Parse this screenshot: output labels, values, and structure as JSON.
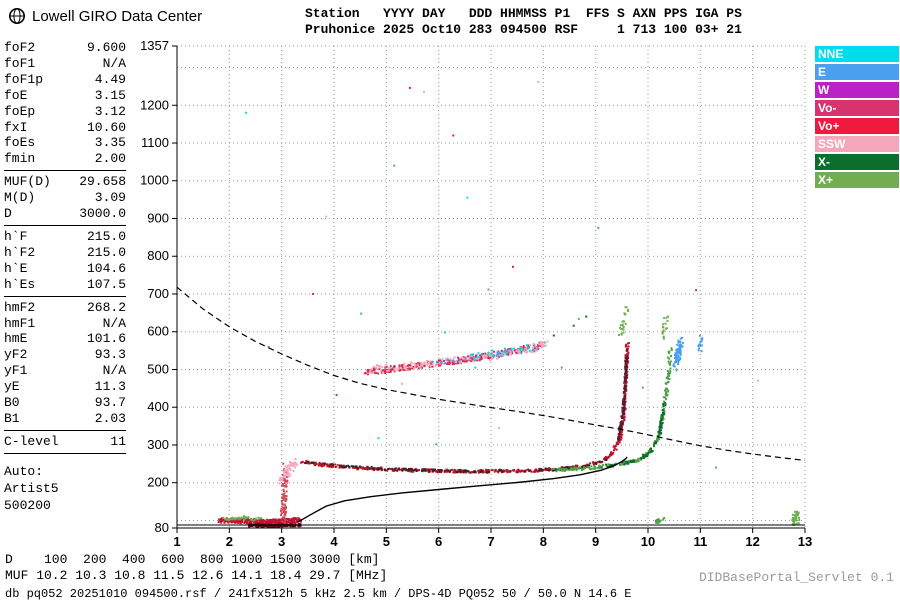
{
  "header": {
    "brand": "Lowell GIRO Data Center",
    "line1": "Station   YYYY DAY   DDD HHMMSS P1  FFS S AXN PPS IGA PS",
    "line2": "Pruhonice 2025 Oct10 283 094500 RSF     1 713 100 03+ 21"
  },
  "params": {
    "groups": [
      [
        {
          "label": "foF2",
          "value": "9.600"
        },
        {
          "label": "foF1",
          "value": "N/A"
        },
        {
          "label": "foF1p",
          "value": "4.49"
        },
        {
          "label": "foE",
          "value": "3.15"
        },
        {
          "label": "foEp",
          "value": "3.12"
        },
        {
          "label": "fxI",
          "value": "10.60"
        },
        {
          "label": "foEs",
          "value": "3.35"
        },
        {
          "label": "fmin",
          "value": "2.00"
        }
      ],
      [
        {
          "label": "MUF(D)",
          "value": "29.658"
        },
        {
          "label": "M(D)",
          "value": "3.09"
        },
        {
          "label": "D",
          "value": "3000.0"
        }
      ],
      [
        {
          "label": "h`F",
          "value": "215.0"
        },
        {
          "label": "h`F2",
          "value": "215.0"
        },
        {
          "label": "h`E",
          "value": "104.6"
        },
        {
          "label": "h`Es",
          "value": "107.5"
        }
      ],
      [
        {
          "label": "hmF2",
          "value": "268.2"
        },
        {
          "label": "hmF1",
          "value": "N/A"
        },
        {
          "label": "hmE",
          "value": "101.6"
        },
        {
          "label": "yF2",
          "value": "93.3"
        },
        {
          "label": "yF1",
          "value": "N/A"
        },
        {
          "label": "yE",
          "value": "11.3"
        },
        {
          "label": "B0",
          "value": "93.7"
        },
        {
          "label": "B1",
          "value": "2.03"
        }
      ],
      [
        {
          "label": "C-level",
          "value": "11"
        }
      ]
    ],
    "auto": [
      "Auto:",
      "Artist5",
      "500200"
    ]
  },
  "colors": {
    "NNE": "#00dcec",
    "E": "#4aa0ee",
    "W": "#bb22c4",
    "Vo-": "#d6336f",
    "Vo+": "#ef1a3c",
    "SSW": "#f4a7bb",
    "X-": "#0a6e2f",
    "X+": "#72ae4f"
  },
  "legend": {
    "items": [
      {
        "label": "NNE",
        "key": "NNE"
      },
      {
        "label": "E",
        "key": "E"
      },
      {
        "label": "W",
        "key": "W"
      },
      {
        "label": "Vo-",
        "key": "Vo-"
      },
      {
        "label": "Vo+",
        "key": "Vo+"
      },
      {
        "label": "SSW",
        "key": "SSW"
      },
      {
        "label": "X-",
        "key": "X-"
      },
      {
        "label": "X+",
        "key": "X+"
      }
    ]
  },
  "footer": {
    "d_line": "D    100  200  400  600  800 1000 1500 3000 [km]",
    "muf_line": "MUF 10.2 10.3 10.8 11.5 12.6 14.1 18.4 29.7 [MHz]",
    "status": "db pq052 20251010 094500.rsf / 241fx512h 5 kHz 2.5 km / DPS-4D PQ052 50 / 50.0 N 14.6 E",
    "servlet": "DIDBasePortal_Servlet 0.1"
  },
  "chart_data": {
    "type": "scatter",
    "title": "Pruhonice ionogram 2025 Oct10 094500",
    "xlabel": "[MHz]",
    "ylabel": "[km]",
    "xlim": [
      1,
      13
    ],
    "ylim": [
      80,
      1357
    ],
    "xticks": [
      1,
      2,
      3,
      4,
      5,
      6,
      7,
      8,
      9,
      10,
      11,
      12,
      13
    ],
    "yticks": [
      1357,
      1200,
      1100,
      1000,
      900,
      800,
      700,
      600,
      500,
      400,
      300,
      200,
      80
    ],
    "grid_x": [
      2,
      3,
      4,
      5,
      6,
      7,
      8,
      9,
      10,
      11,
      12,
      13
    ],
    "grid_y": [
      100,
      200,
      300,
      400,
      500,
      600,
      700,
      800,
      900,
      1000,
      1100,
      1200,
      1300,
      1357
    ],
    "muf_table": {
      "D_km": [
        100,
        200,
        400,
        600,
        800,
        1000,
        1500,
        3000
      ],
      "MUF_MHz": [
        10.2,
        10.3,
        10.8,
        11.5,
        12.6,
        14.1,
        18.4,
        29.7
      ]
    },
    "key_frequencies": {
      "foF2": 9.6,
      "fxI": 10.6,
      "foEs": 3.35,
      "fmin": 2.0,
      "hmF2": 268.2
    },
    "curves": {
      "baseline": [
        [
          1,
          88
        ],
        [
          13,
          88
        ]
      ],
      "profile": [
        [
          3.3,
          95
        ],
        [
          3.55,
          115
        ],
        [
          3.85,
          138
        ],
        [
          4.2,
          152
        ],
        [
          4.7,
          163
        ],
        [
          5.3,
          173
        ],
        [
          6,
          182
        ],
        [
          6.8,
          192
        ],
        [
          7.6,
          202
        ],
        [
          8.2,
          211
        ],
        [
          8.7,
          221
        ],
        [
          9.1,
          233
        ],
        [
          9.35,
          245
        ],
        [
          9.5,
          256
        ],
        [
          9.58,
          264
        ],
        [
          9.6,
          268
        ]
      ],
      "transmission": [
        [
          1,
          718
        ],
        [
          1.5,
          660
        ],
        [
          2,
          613
        ],
        [
          2.5,
          574
        ],
        [
          3,
          541
        ],
        [
          3.5,
          511
        ],
        [
          4,
          484
        ],
        [
          4.5,
          463
        ],
        [
          5,
          447
        ],
        [
          5.5,
          434
        ],
        [
          6,
          421
        ],
        [
          6.5,
          410
        ],
        [
          7,
          399
        ],
        [
          7.5,
          389
        ],
        [
          8,
          378
        ],
        [
          8.5,
          366
        ],
        [
          9,
          353
        ],
        [
          9.5,
          341
        ],
        [
          10,
          327
        ],
        [
          10.5,
          312
        ],
        [
          11,
          298
        ],
        [
          11.5,
          286
        ],
        [
          12,
          276
        ],
        [
          12.5,
          267
        ],
        [
          13,
          259
        ]
      ]
    },
    "scatter_series": [
      {
        "name": "es-band-red",
        "color": "#c41230",
        "n": 300,
        "size": 2,
        "jf": 0.04,
        "jh": 6,
        "path": [
          [
            1.82,
            100
          ],
          [
            2.2,
            99
          ],
          [
            2.7,
            96
          ],
          [
            3.1,
            98
          ],
          [
            3.35,
            102
          ]
        ]
      },
      {
        "name": "es-band-dark",
        "color": "#571016",
        "n": 220,
        "size": 2,
        "jf": 0.03,
        "jh": 3,
        "path": [
          [
            2.4,
            87
          ],
          [
            2.9,
            86
          ],
          [
            3.35,
            88
          ]
        ]
      },
      {
        "name": "es-band-green",
        "color": "#6fae52",
        "n": 36,
        "size": 2,
        "jf": 0.05,
        "jh": 5,
        "path": [
          [
            1.85,
            104
          ],
          [
            2.25,
            107
          ],
          [
            2.6,
            103
          ]
        ]
      },
      {
        "name": "spreadf-column",
        "color": "#cf4a55",
        "n": 80,
        "size": 2,
        "jf": 0.05,
        "jh": 12,
        "path": [
          [
            3.03,
            100
          ],
          [
            3.05,
            170
          ],
          [
            3.08,
            245
          ]
        ]
      },
      {
        "name": "spreadf-pink",
        "color": "#f4a7bb",
        "n": 55,
        "size": 2,
        "jf": 0.09,
        "jh": 9,
        "path": [
          [
            3.0,
            205
          ],
          [
            3.15,
            240
          ],
          [
            3.3,
            258
          ]
        ]
      },
      {
        "name": "ftrace-flat-red",
        "color": "#b51325",
        "n": 420,
        "size": 2,
        "jf": 0.02,
        "jh": 4,
        "path": [
          [
            3.35,
            257
          ],
          [
            3.8,
            247
          ],
          [
            4.5,
            239
          ],
          [
            5.5,
            233
          ],
          [
            6.5,
            230
          ],
          [
            7.5,
            231
          ],
          [
            8.2,
            235
          ],
          [
            8.8,
            244
          ],
          [
            9.15,
            259
          ],
          [
            9.35,
            281
          ]
        ]
      },
      {
        "name": "ftrace-flat-dark",
        "color": "#332428",
        "n": 140,
        "size": 2,
        "jf": 0.03,
        "jh": 3,
        "path": [
          [
            3.4,
            255
          ],
          [
            4.2,
            243
          ],
          [
            5.2,
            235
          ],
          [
            6.3,
            230
          ],
          [
            7.4,
            231
          ],
          [
            8.3,
            236
          ],
          [
            8.9,
            246
          ],
          [
            9.2,
            262
          ]
        ]
      },
      {
        "name": "ftrace-rise-red",
        "color": "#cc1133",
        "n": 200,
        "size": 2,
        "jf": 0.03,
        "jh": 10,
        "path": [
          [
            9.36,
            285
          ],
          [
            9.47,
            325
          ],
          [
            9.54,
            390
          ],
          [
            9.57,
            460
          ],
          [
            9.6,
            545
          ],
          [
            9.61,
            565
          ]
        ]
      },
      {
        "name": "ftrace-rise-dark",
        "color": "#432430",
        "n": 90,
        "size": 2,
        "jf": 0.02,
        "jh": 8,
        "path": [
          [
            9.42,
            310
          ],
          [
            9.52,
            380
          ],
          [
            9.57,
            470
          ],
          [
            9.6,
            555
          ]
        ]
      },
      {
        "name": "xtrace-green",
        "color": "#4f9f45",
        "n": 240,
        "size": 2,
        "jf": 0.035,
        "jh": 4,
        "path": [
          [
            8.15,
            233
          ],
          [
            8.8,
            238
          ],
          [
            9.4,
            247
          ],
          [
            9.85,
            262
          ],
          [
            10.05,
            283
          ],
          [
            10.2,
            320
          ],
          [
            10.3,
            385
          ],
          [
            10.37,
            460
          ],
          [
            10.42,
            540
          ],
          [
            10.44,
            560
          ]
        ]
      },
      {
        "name": "xtrace-darkgreen",
        "color": "#0d6b2f",
        "n": 80,
        "size": 2,
        "jf": 0.03,
        "jh": 4,
        "path": [
          [
            9.1,
            243
          ],
          [
            9.7,
            255
          ],
          [
            10.05,
            280
          ],
          [
            10.22,
            330
          ],
          [
            10.32,
            410
          ]
        ]
      },
      {
        "name": "xtop-blue",
        "color": "#4aa0ee",
        "n": 70,
        "size": 2,
        "jf": 0.05,
        "jh": 14,
        "path": [
          [
            10.52,
            505
          ],
          [
            10.57,
            540
          ],
          [
            10.63,
            572
          ]
        ]
      },
      {
        "name": "secondhop-red",
        "color": "#d42a55",
        "n": 300,
        "size": 2,
        "jf": 0.05,
        "jh": 8,
        "path": [
          [
            4.6,
            493
          ],
          [
            5.2,
            503
          ],
          [
            5.8,
            513
          ],
          [
            6.4,
            524
          ],
          [
            7.0,
            538
          ],
          [
            7.5,
            551
          ],
          [
            8.0,
            564
          ]
        ]
      },
      {
        "name": "secondhop-pink",
        "color": "#f4a7bb",
        "n": 170,
        "size": 2,
        "jf": 0.07,
        "jh": 10,
        "path": [
          [
            4.7,
            499
          ],
          [
            5.4,
            510
          ],
          [
            6.1,
            521
          ],
          [
            6.9,
            533
          ],
          [
            7.6,
            549
          ],
          [
            8.05,
            566
          ]
        ]
      },
      {
        "name": "secondhop-cyan",
        "color": "#00dcec",
        "n": 30,
        "size": 2,
        "jf": 0.06,
        "jh": 10,
        "path": [
          [
            6.6,
            532
          ],
          [
            7.3,
            547
          ],
          [
            8.0,
            566
          ]
        ]
      },
      {
        "name": "secondhop-blue",
        "color": "#4aa0ee",
        "n": 26,
        "size": 2,
        "jf": 0.06,
        "jh": 10,
        "path": [
          [
            5.9,
            515
          ],
          [
            7.0,
            538
          ],
          [
            7.9,
            560
          ]
        ]
      },
      {
        "name": "bottomright-green",
        "color": "#6fae52",
        "n": 40,
        "size": 2,
        "jf": 0.05,
        "jh": 14,
        "path": [
          [
            12.78,
            95
          ],
          [
            12.85,
            110
          ]
        ]
      },
      {
        "name": "es-x-green",
        "color": "#4f9f45",
        "n": 14,
        "size": 2,
        "jf": 0.06,
        "jh": 6,
        "path": [
          [
            10.15,
            99
          ],
          [
            10.3,
            101
          ]
        ]
      },
      {
        "name": "otop-specks-green",
        "color": "#6fae52",
        "n": 24,
        "size": 2,
        "jf": 0.04,
        "jh": 18,
        "path": [
          [
            9.47,
            595
          ],
          [
            9.55,
            628
          ],
          [
            9.6,
            652
          ]
        ]
      },
      {
        "name": "xtop-specks-green",
        "color": "#6fae52",
        "n": 18,
        "size": 2,
        "jf": 0.04,
        "jh": 15,
        "path": [
          [
            10.3,
            595
          ],
          [
            10.35,
            638
          ]
        ]
      },
      {
        "name": "right-blue-specks",
        "color": "#4aa0ee",
        "n": 16,
        "size": 2,
        "jf": 0.04,
        "jh": 12,
        "path": [
          [
            10.98,
            555
          ],
          [
            11.04,
            580
          ]
        ]
      }
    ],
    "noise_points": [
      [
        5.45,
        1246,
        "Vo+"
      ],
      [
        5.72,
        1236,
        "SSW"
      ],
      [
        6.28,
        1120,
        "Vo+"
      ],
      [
        5.15,
        1040,
        "E"
      ],
      [
        2.32,
        1180,
        "NNE"
      ],
      [
        6.55,
        955,
        "NNE"
      ],
      [
        3.85,
        905,
        "SSW"
      ],
      [
        9.05,
        875,
        "E"
      ],
      [
        7.42,
        772,
        "Vo+"
      ],
      [
        6.95,
        712,
        "X+"
      ],
      [
        10.92,
        710,
        "W"
      ],
      [
        8.82,
        640,
        "X-"
      ],
      [
        8.58,
        616,
        "X-"
      ],
      [
        8.68,
        634,
        "X+"
      ],
      [
        4.52,
        648,
        "E"
      ],
      [
        6.12,
        598,
        "NNE"
      ],
      [
        5.3,
        462,
        "SSW"
      ],
      [
        6.7,
        505,
        "NNE"
      ],
      [
        8.35,
        505,
        "E"
      ],
      [
        5.95,
        302,
        "E"
      ],
      [
        4.85,
        318,
        "NNE"
      ],
      [
        7.15,
        345,
        "SSW"
      ],
      [
        9.9,
        452,
        "X+"
      ],
      [
        11.3,
        240,
        "E"
      ],
      [
        12.1,
        470,
        "SSW"
      ],
      [
        3.6,
        700,
        "Vo+"
      ],
      [
        2.75,
        560,
        "E"
      ],
      [
        4.05,
        432,
        "W"
      ],
      [
        7.9,
        1262,
        "SSW"
      ],
      [
        8.2,
        590,
        "X-"
      ]
    ]
  }
}
